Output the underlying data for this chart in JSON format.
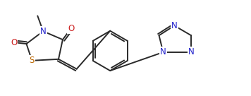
{
  "bg_color": "#ffffff",
  "line_color": "#2a2a2a",
  "N_color": "#2020cc",
  "O_color": "#cc2020",
  "S_color": "#bb6600",
  "lw": 1.4,
  "figsize": [
    3.56,
    1.36
  ],
  "dpi": 100,
  "xlim": [
    0,
    3.56
  ],
  "ylim": [
    0,
    1.36
  ]
}
